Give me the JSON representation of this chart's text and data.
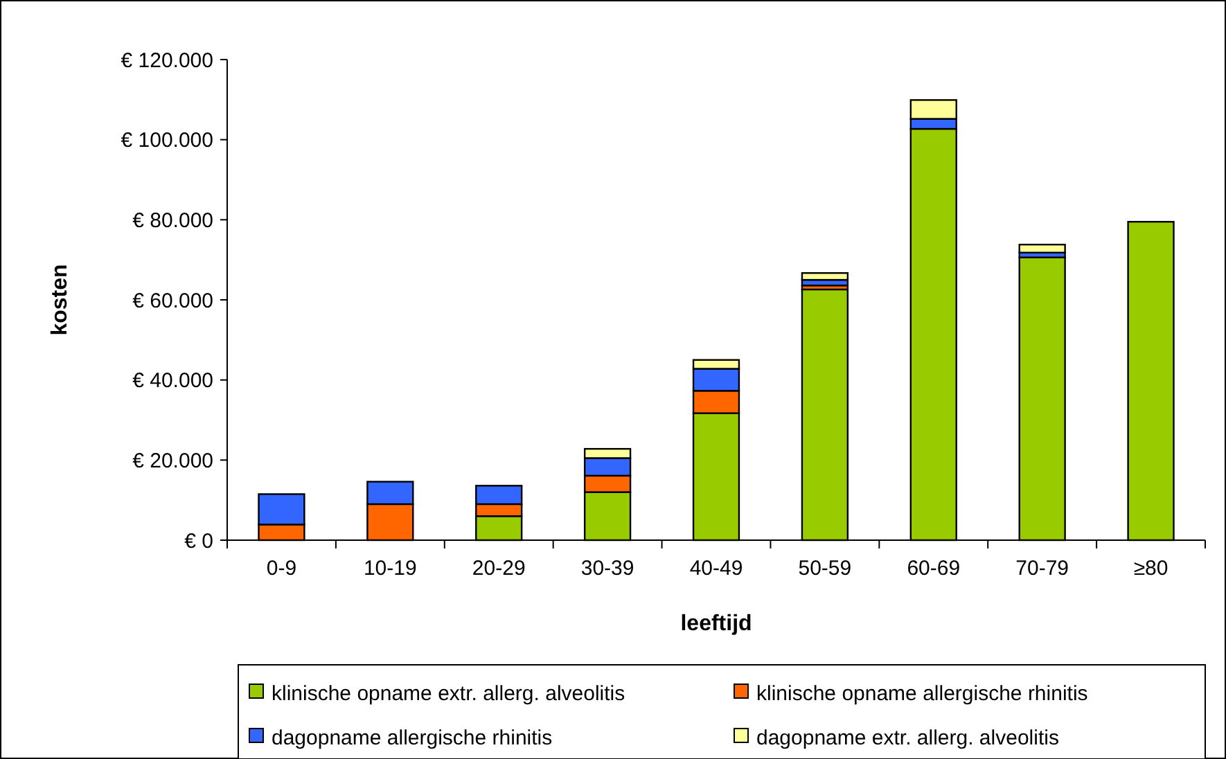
{
  "chart_data": {
    "type": "bar",
    "stacked": true,
    "xlabel": "leeftijd",
    "ylabel": "kosten",
    "categories": [
      "0-9",
      "10-19",
      "20-29",
      "30-39",
      "40-49",
      "50-59",
      "60-69",
      "70-79",
      "≥80"
    ],
    "series": [
      {
        "name": "klinische opname extr. allerg. alveolitis",
        "color": "#99cc00",
        "values": [
          0,
          0,
          6000,
          12000,
          31700,
          62600,
          102700,
          70600,
          79500
        ]
      },
      {
        "name": "klinische opname allergische rhinitis",
        "color": "#ff6600",
        "values": [
          3900,
          9000,
          3000,
          4100,
          5600,
          1000,
          null,
          null,
          0
        ]
      },
      {
        "name": "dagopname allergische rhinitis",
        "color": "#3366ff",
        "values": [
          7600,
          5600,
          4600,
          4400,
          5500,
          1400,
          2500,
          1200,
          0
        ]
      },
      {
        "name": "dagopname extr. allerg. alveolitis",
        "color": "#ffff99",
        "values": [
          0,
          0,
          0,
          2300,
          2200,
          1700,
          4700,
          2000,
          0
        ]
      }
    ],
    "ylim": [
      0,
      120000
    ],
    "yticks": [
      {
        "value": 0,
        "label": "€ 0"
      },
      {
        "value": 20000,
        "label": "€ 20.000"
      },
      {
        "value": 40000,
        "label": "€ 40.000"
      },
      {
        "value": 60000,
        "label": "€ 60.000"
      },
      {
        "value": 80000,
        "label": "€ 80.000"
      },
      {
        "value": 100000,
        "label": "€ 100.000"
      },
      {
        "value": 120000,
        "label": "€ 120.000"
      }
    ],
    "grid": false,
    "legend": "bottom"
  }
}
